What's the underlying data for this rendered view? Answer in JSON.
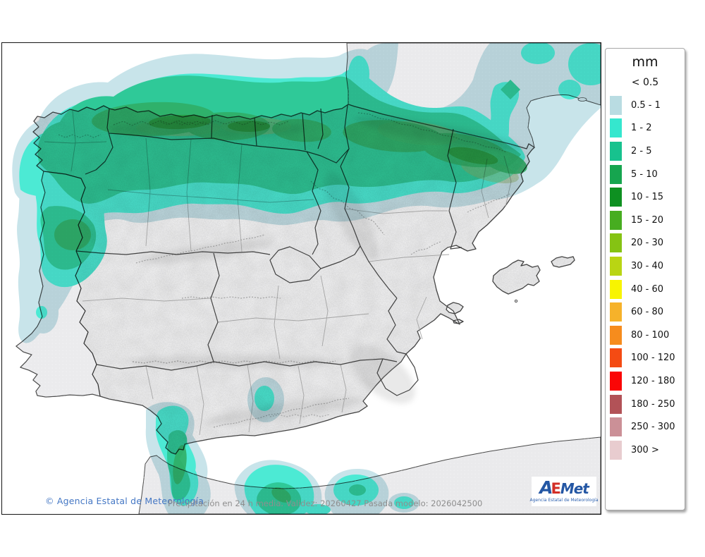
{
  "map": {
    "footer": {
      "copyright": "© Agencia Estatal de Meteorología",
      "caption": "Precipitación en 24 h media. Validez: 20260427 Pasada modelo: 2026042500"
    },
    "logo": {
      "letter_a": "A",
      "letter_e": "E",
      "letters_met": "Met",
      "tagline": "Agencia Estatal de Meteorología"
    },
    "colors": {
      "sea": "#ffffff",
      "foreign_land": "#eaeaec",
      "spain_land": "#f3f3f4",
      "region_border": "#2d2d2d",
      "province_border": "#9e9e9e",
      "precip_light": "#c3e2e8",
      "precip_cyan": "#3ce9d0",
      "precip_green_2_5": "#1cc48f",
      "precip_green_5_10": "#1da757",
      "precip_green_10_15": "#128c2c",
      "precip_olive": "#84a855"
    }
  },
  "legend": {
    "title": "mm",
    "first_label": "< 0.5",
    "bins": [
      {
        "label": "0.5 - 1",
        "color": "#b9dce2"
      },
      {
        "label": "1 - 2",
        "color": "#35e7ce"
      },
      {
        "label": "2 - 5",
        "color": "#17c28e"
      },
      {
        "label": "5 - 10",
        "color": "#16a54f"
      },
      {
        "label": "10 - 15",
        "color": "#0e9021"
      },
      {
        "label": "15 - 20",
        "color": "#47ad20"
      },
      {
        "label": "20 - 30",
        "color": "#85c313"
      },
      {
        "label": "30 - 40",
        "color": "#b9d513"
      },
      {
        "label": "40 - 60",
        "color": "#f8f400"
      },
      {
        "label": "60 - 80",
        "color": "#f6b22a"
      },
      {
        "label": "80 - 100",
        "color": "#f68c1d"
      },
      {
        "label": "100 - 120",
        "color": "#f44b13"
      },
      {
        "label": "120 - 180",
        "color": "#fa0606"
      },
      {
        "label": "180 - 250",
        "color": "#b25257"
      },
      {
        "label": "250 - 300",
        "color": "#cb9097"
      },
      {
        "label": "300 >",
        "color": "#e8cccf"
      }
    ]
  }
}
